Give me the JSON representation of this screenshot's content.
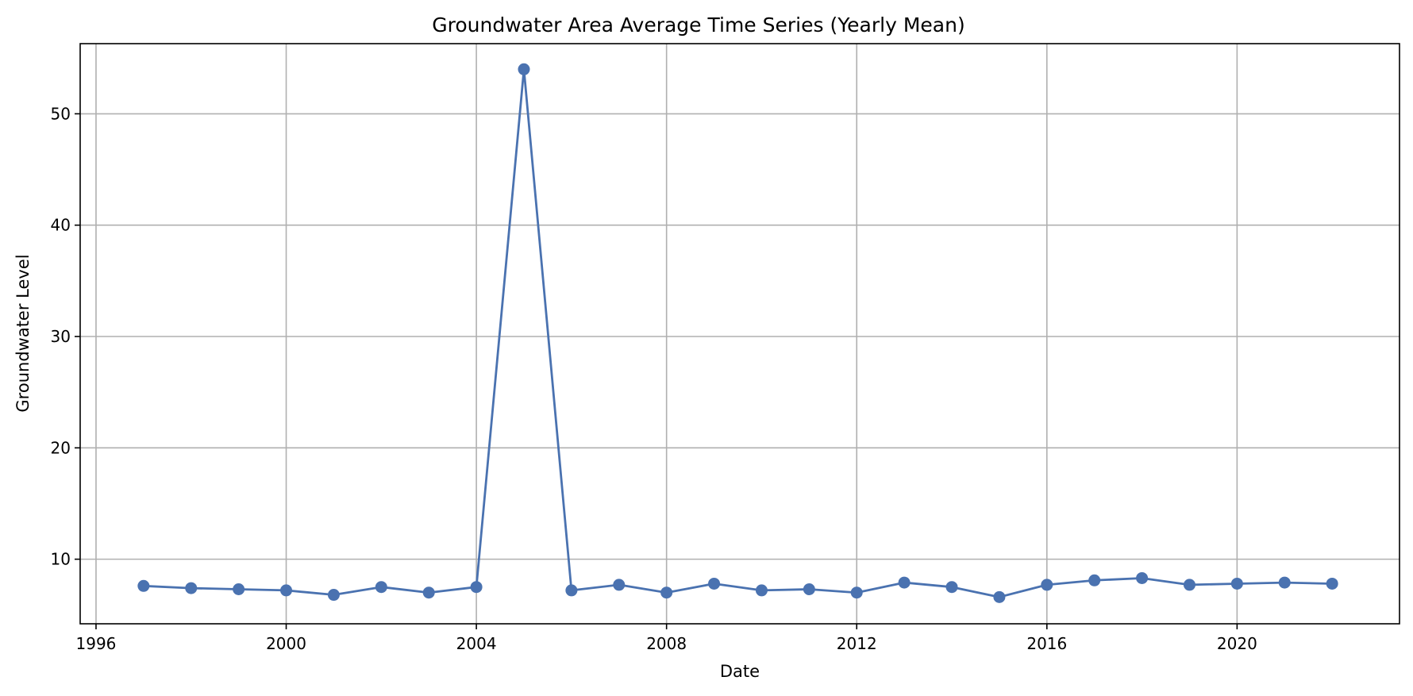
{
  "chart_data": {
    "type": "line",
    "title": "Groundwater Area Average Time Series (Yearly Mean)",
    "xlabel": "Date",
    "ylabel": "Groundwater Level",
    "x_ticks": [
      "1996",
      "2000",
      "2004",
      "2008",
      "2012",
      "2016",
      "2020"
    ],
    "y_ticks": [
      10,
      20,
      30,
      40,
      50
    ],
    "xlim": [
      "1995-09",
      "2023-06"
    ],
    "ylim": [
      4.2,
      56.3
    ],
    "grid": true,
    "legend": "none",
    "series": [
      {
        "color": "#4a72b0",
        "marker": "circle",
        "x": [
          "1997",
          "1998",
          "1999",
          "2000",
          "2001",
          "2002",
          "2003",
          "2004",
          "2005",
          "2006",
          "2007",
          "2008",
          "2009",
          "2010",
          "2011",
          "2012",
          "2013",
          "2014",
          "2015",
          "2016",
          "2017",
          "2018",
          "2019",
          "2020",
          "2021",
          "2022"
        ],
        "y": [
          7.6,
          7.4,
          7.3,
          7.2,
          6.8,
          7.5,
          7.0,
          7.5,
          54.0,
          7.2,
          7.7,
          7.0,
          7.8,
          7.2,
          7.3,
          7.0,
          7.9,
          7.5,
          6.6,
          7.7,
          8.1,
          8.3,
          7.7,
          7.8,
          7.9,
          7.8
        ]
      }
    ]
  }
}
